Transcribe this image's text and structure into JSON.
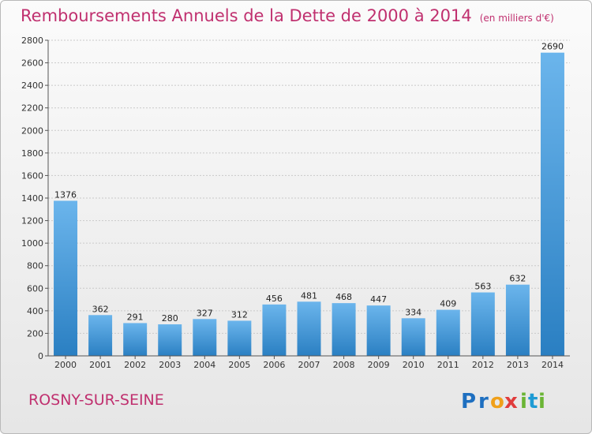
{
  "title": {
    "main": "Remboursements Annuels de la Dette de 2000 à 2014",
    "unit": "(en milliers d'€)"
  },
  "location": "ROSNY-SUR-SEINE",
  "brand": {
    "text": "Proxiti",
    "letters": [
      "P",
      "r",
      "o",
      "x",
      "i",
      "t",
      "i"
    ]
  },
  "colors": {
    "title": "#c0306f",
    "bar_top": "#6bb5ec",
    "bar_bottom": "#2a7fc2",
    "brand_letters": [
      "#1e6fc0",
      "#1e6fc0",
      "#f0a01a",
      "#e03c3c",
      "#6bb535",
      "#1e9bd4",
      "#6bb535"
    ]
  },
  "chart_data": {
    "type": "bar",
    "title": "Remboursements Annuels de la Dette de 2000 à 2014",
    "unit": "(en milliers d'€)",
    "categories": [
      "2000",
      "2001",
      "2002",
      "2003",
      "2004",
      "2005",
      "2006",
      "2007",
      "2008",
      "2009",
      "2010",
      "2011",
      "2012",
      "2013",
      "2014"
    ],
    "values": [
      1376,
      362,
      291,
      280,
      327,
      312,
      456,
      481,
      468,
      447,
      334,
      409,
      563,
      632,
      2690
    ],
    "ylim": [
      0,
      2800
    ],
    "yticks": [
      0,
      200,
      400,
      600,
      800,
      1000,
      1200,
      1400,
      1600,
      1800,
      2000,
      2200,
      2400,
      2600,
      2800
    ],
    "grid": true,
    "legend": "none"
  }
}
